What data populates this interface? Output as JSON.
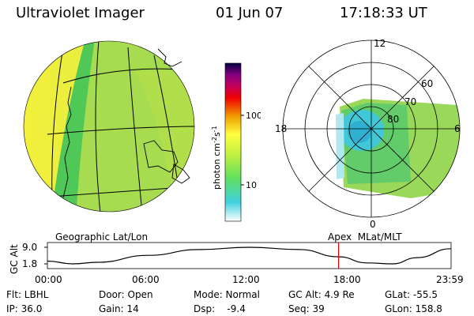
{
  "header": {
    "title": "Ultraviolet Imager",
    "date": "01 Jun 07",
    "time": "17:18:33 UT"
  },
  "colorbar": {
    "ticks": [
      "100",
      "10"
    ],
    "label": "photon cm",
    "label_sup1": "-2",
    "label_mid": "s",
    "label_sup2": "-1",
    "stops": [
      "#ffffff",
      "#40d0e0",
      "#60e060",
      "#c0f040",
      "#ffff40",
      "#f0a000",
      "#f00000",
      "#c00060",
      "#800080",
      "#000040"
    ]
  },
  "geo_panel": {
    "caption": "Geographic Lat/Lon"
  },
  "polar_panel": {
    "caption": "Apex  MLat/MLT",
    "mlt_labels": {
      "top": "12",
      "left": "18",
      "right": "6",
      "bottom": "0"
    },
    "mlat_labels": [
      "60",
      "70",
      "80"
    ]
  },
  "altitude_plot": {
    "ylabel": "GC Alt",
    "yticks": [
      "9.0",
      "1.8"
    ],
    "xticks": [
      "00:00",
      "06:00",
      "12:00",
      "18:00",
      "23:59"
    ],
    "series": {
      "hours": [
        0,
        1.5,
        3,
        6,
        9,
        12,
        15,
        17.3,
        19,
        20.5,
        22,
        23.98
      ],
      "alt_re": [
        3.0,
        1.8,
        2.5,
        5.5,
        8.0,
        9.0,
        8.0,
        4.9,
        2.2,
        1.8,
        4.5,
        8.4
      ]
    },
    "marker_hour": 17.31,
    "marker_color": "#e00000"
  },
  "info": {
    "flt": "Flt: LBHL",
    "ip": "IP: 36.0",
    "door": "Door: Open",
    "gain": "Gain: 14",
    "mode": "Mode: Normal",
    "dsp": "Dsp:    -9.4",
    "gcalt": "GC Alt: 4.9 Re",
    "seq": "Seq: 39",
    "glat": "GLat: -55.5",
    "glon": "GLon: 158.8"
  }
}
